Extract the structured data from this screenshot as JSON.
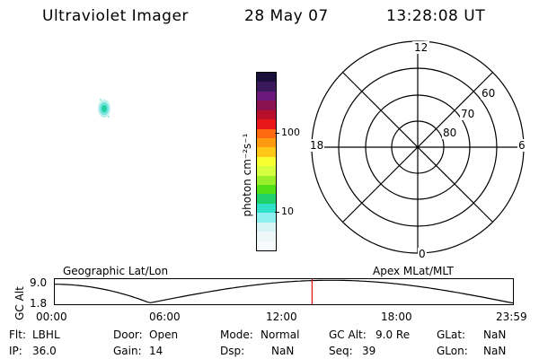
{
  "header": {
    "title": "Ultraviolet Imager",
    "date": "28 May 07",
    "time": "13:28:08 UT"
  },
  "colorbar": {
    "unit_label": "photon cm⁻²s⁻¹",
    "tick_100": "100",
    "tick_10": "10",
    "colors_top_to_bottom": [
      "#1a0f3a",
      "#3a1a5a",
      "#6a1a7a",
      "#8a1050",
      "#b8102a",
      "#e8181a",
      "#ff6a10",
      "#ff9a10",
      "#ffc818",
      "#f8ff30",
      "#d6ff40",
      "#9aef2a",
      "#50e018",
      "#20d06a",
      "#30e0c8",
      "#8ef0ee",
      "#d8f4f4",
      "#eef8f8",
      "#f7fbfb"
    ]
  },
  "polar": {
    "mlt_12": "12",
    "mlt_18": "18",
    "mlt_6": "6",
    "mlt_0": "0",
    "lat_60": "60",
    "lat_70": "70",
    "lat_80": "80"
  },
  "orbit": {
    "left_title": "Geographic Lat/Lon",
    "right_title": "Apex MLat/MLT",
    "yaxis_label": "GC Alt",
    "y_top": "9.0",
    "y_bottom": "1.8",
    "x_ticks": [
      "00:00",
      "06:00",
      "12:00",
      "18:00",
      "23:59"
    ],
    "current_time_hours": 13.47
  },
  "status": {
    "flt_label": "Flt:",
    "flt_value": "LBHL",
    "ip_label": "IP:",
    "ip_value": "36.0",
    "door_label": "Door:",
    "door_value": "Open",
    "gain_label": "Gain:",
    "gain_value": "14",
    "mode_label": "Mode:",
    "mode_value": "Normal",
    "dsp_label": "Dsp:",
    "dsp_value": "NaN",
    "gcalt_label": "GC Alt:",
    "gcalt_value": "9.0 Re",
    "seq_label": "Seq:",
    "seq_value": "39",
    "glat_label": "GLat:",
    "glat_value": "NaN",
    "glon_label": "GLon:",
    "glon_value": "NaN"
  }
}
